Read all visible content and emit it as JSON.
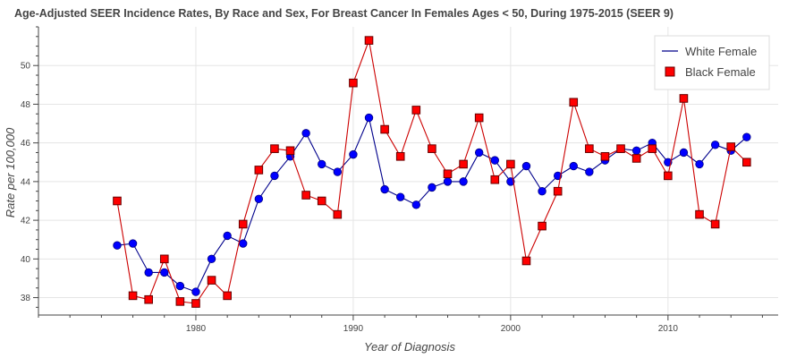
{
  "chart_data": {
    "type": "line",
    "title": "Age-Adjusted SEER Incidence Rates, By Race and Sex, For Breast Cancer In Females  Ages < 50, During 1975-2015  (SEER 9)",
    "xlabel": "Year of Diagnosis",
    "ylabel": "Rate per 100,000",
    "xlim": [
      1970,
      2017
    ],
    "ylim": [
      37.1,
      52.0
    ],
    "x_ticks": [
      1980,
      1990,
      2000,
      2010
    ],
    "y_ticks": [
      38,
      40,
      42,
      44,
      46,
      48,
      50
    ],
    "grid": true,
    "legend_position": "top-right",
    "x": [
      1975,
      1976,
      1977,
      1978,
      1979,
      1980,
      1981,
      1982,
      1983,
      1984,
      1985,
      1986,
      1987,
      1988,
      1989,
      1990,
      1991,
      1992,
      1993,
      1994,
      1995,
      1996,
      1997,
      1998,
      1999,
      2000,
      2001,
      2002,
      2003,
      2004,
      2005,
      2006,
      2007,
      2008,
      2009,
      2010,
      2011,
      2012,
      2013,
      2014,
      2015
    ],
    "series": [
      {
        "name": "White Female",
        "color": "#0000ff",
        "line_color": "#00008b",
        "marker": "circle",
        "values": [
          40.7,
          40.8,
          39.3,
          39.3,
          38.6,
          38.3,
          40.0,
          41.2,
          40.8,
          43.1,
          44.3,
          45.3,
          46.5,
          44.9,
          44.5,
          45.4,
          47.3,
          43.6,
          43.2,
          42.8,
          43.7,
          44.0,
          44.0,
          45.5,
          45.1,
          44.0,
          44.8,
          43.5,
          44.3,
          44.8,
          44.5,
          45.1,
          45.7,
          45.6,
          46.0,
          45.0,
          45.5,
          44.9,
          45.9,
          45.6,
          46.3
        ]
      },
      {
        "name": "Black Female",
        "color": "#ff0000",
        "line_color": "#cc0000",
        "marker": "square",
        "values": [
          43.0,
          38.1,
          37.9,
          40.0,
          37.8,
          37.7,
          38.9,
          38.1,
          41.8,
          44.6,
          45.7,
          45.6,
          43.3,
          43.0,
          42.3,
          49.1,
          51.3,
          46.7,
          45.3,
          47.7,
          45.7,
          44.4,
          44.9,
          47.3,
          44.1,
          44.9,
          39.9,
          41.7,
          43.5,
          48.1,
          45.7,
          45.3,
          45.7,
          45.2,
          45.7,
          44.3,
          48.3,
          42.3,
          41.8,
          45.8,
          45.0
        ]
      }
    ]
  }
}
